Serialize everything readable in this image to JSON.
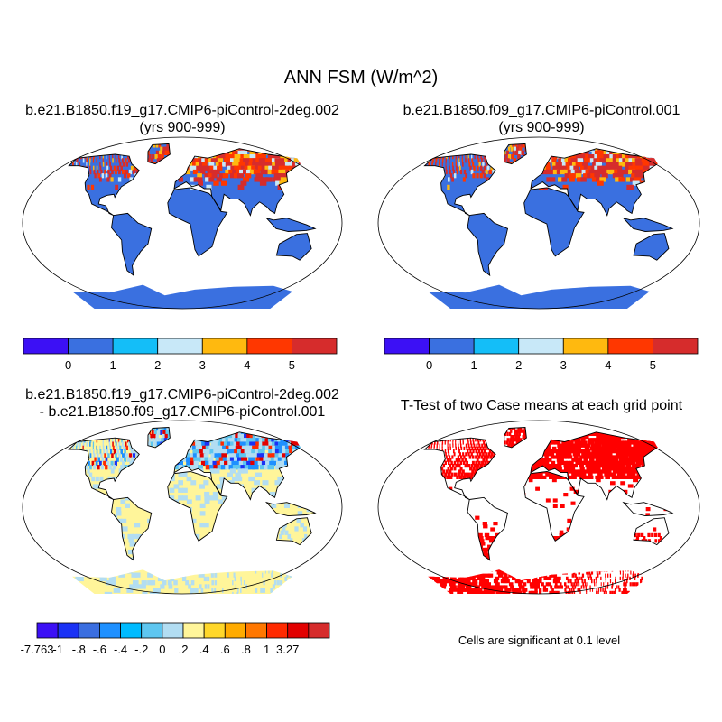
{
  "title": "ANN FSM (W/m^2)",
  "panels": [
    {
      "title_line1": "b.e21.B1850.f19_g17.CMIP6-piControl-2deg.002",
      "title_line2": "(yrs 900-999)"
    },
    {
      "title_line1": "b.e21.B1850.f09_g17.CMIP6-piControl.001",
      "title_line2": "(yrs 900-999)"
    },
    {
      "title_line1": "b.e21.B1850.f19_g17.CMIP6-piControl-2deg.002",
      "title_line2": "- b.e21.B1850.f09_g17.CMIP6-piControl.001"
    },
    {
      "title_line1": "T-Test of two Case means at each grid point",
      "title_line2": ""
    }
  ],
  "colorbar_case": {
    "labels": [
      "0",
      "1",
      "2",
      "3",
      "4",
      "5"
    ],
    "colors": [
      "#3c10f5",
      "#3a70e0",
      "#14bef8",
      "#c8e8f8",
      "#ffb90f",
      "#ff3700",
      "#d62c2c"
    ]
  },
  "colorbar_diff": {
    "labels": [
      "-7.763",
      "-1",
      "-.8",
      "-.6",
      "-.4",
      "-.2",
      "0",
      ".2",
      ".4",
      ".6",
      ".8",
      "1",
      "3.27"
    ],
    "colors": [
      "#3c10f5",
      "#1a32f5",
      "#3a6ee0",
      "#1e90ff",
      "#00bbff",
      "#5ec6f0",
      "#b2ddf2",
      "#fff59a",
      "#ffd72a",
      "#ffab00",
      "#ff7700",
      "#ff2a00",
      "#e20000",
      "#d62c2c"
    ]
  },
  "significance_note": "Cells are significant at 0.1 level",
  "significance_color": "#ff0000"
}
